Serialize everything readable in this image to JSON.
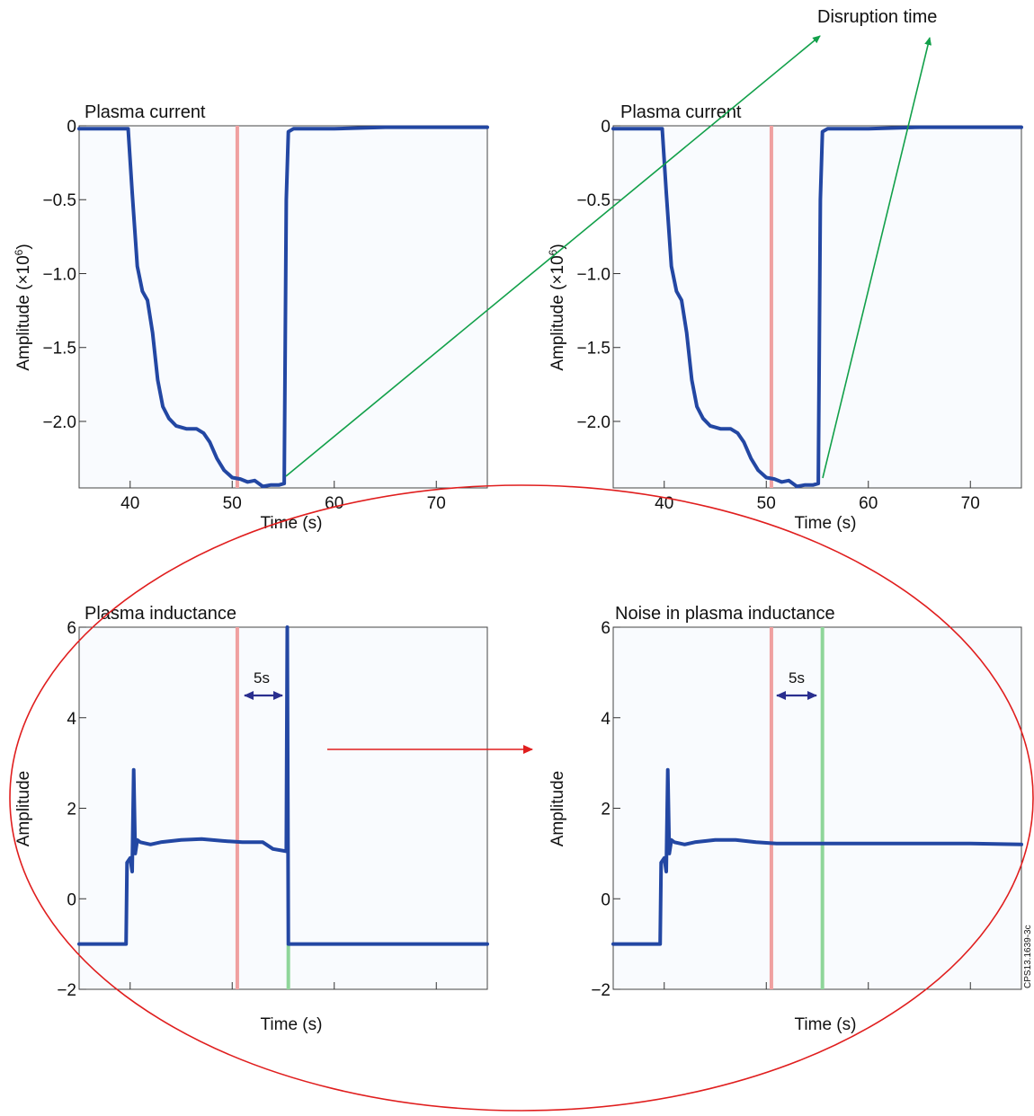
{
  "annotations": {
    "disruption_time": "Disruption time",
    "interval_5s": "5s",
    "figure_id": "CPS13.1639-3c"
  },
  "colors": {
    "trace": "#2347a3",
    "red_marker": "#f0a0a0",
    "green_marker": "#8fd69a",
    "green_arrow": "#12a04a",
    "red_ellipse": "#e01e1e",
    "interval_arrow": "#2a2f8f"
  },
  "chart_data": [
    {
      "type": "line",
      "title": "Plasma current",
      "xlabel": "Time (s)",
      "ylabel": "Amplitude (×10⁶)",
      "xlim": [
        35,
        75
      ],
      "ylim": [
        -2.45,
        0
      ],
      "xticks": [
        40,
        50,
        60,
        70
      ],
      "yticks": [
        0,
        -0.5,
        -1.0,
        -1.5,
        -2.0
      ],
      "ytick_labels": [
        "0",
        "−0.5",
        "−1.0",
        "−1.5",
        "−2.0"
      ],
      "show_xtick_labels": true,
      "markers": [
        {
          "x": 50.5,
          "color": "red"
        }
      ],
      "series": [
        {
          "x": [
            35,
            39.8,
            40.2,
            40.7,
            41.2,
            41.7,
            42.2,
            42.7,
            43.2,
            43.8,
            44.5,
            45.5,
            46.5,
            47.2,
            47.8,
            48.5,
            49.2,
            50.0,
            50.8,
            51.5,
            52.2,
            53.0,
            53.8,
            54.6,
            55.1,
            55.3,
            55.5,
            56.0,
            60,
            65,
            75
          ],
          "y": [
            -0.02,
            -0.02,
            -0.45,
            -0.95,
            -1.12,
            -1.18,
            -1.4,
            -1.72,
            -1.9,
            -1.98,
            -2.03,
            -2.05,
            -2.05,
            -2.08,
            -2.14,
            -2.25,
            -2.33,
            -2.38,
            -2.39,
            -2.41,
            -2.4,
            -2.44,
            -2.43,
            -2.43,
            -2.42,
            -0.5,
            -0.04,
            -0.02,
            -0.02,
            -0.01,
            -0.01
          ]
        }
      ]
    },
    {
      "type": "line",
      "title": "Plasma current",
      "xlabel": "Time (s)",
      "ylabel": "Amplitude (×10⁶)",
      "xlim": [
        35,
        75
      ],
      "ylim": [
        -2.45,
        0
      ],
      "xticks": [
        40,
        50,
        60,
        70
      ],
      "yticks": [
        0,
        -0.5,
        -1.0,
        -1.5,
        -2.0
      ],
      "ytick_labels": [
        "0",
        "−0.5",
        "−1.0",
        "−1.5",
        "−2.0"
      ],
      "show_xtick_labels": true,
      "markers": [
        {
          "x": 50.5,
          "color": "red"
        }
      ],
      "series": [
        {
          "x": [
            35,
            39.8,
            40.2,
            40.7,
            41.2,
            41.7,
            42.2,
            42.7,
            43.2,
            43.8,
            44.5,
            45.5,
            46.5,
            47.2,
            47.8,
            48.5,
            49.2,
            50.0,
            50.8,
            51.5,
            52.2,
            53.0,
            53.8,
            54.6,
            55.1,
            55.3,
            55.5,
            56.0,
            60,
            65,
            75
          ],
          "y": [
            -0.02,
            -0.02,
            -0.45,
            -0.95,
            -1.12,
            -1.18,
            -1.4,
            -1.72,
            -1.9,
            -1.98,
            -2.03,
            -2.05,
            -2.05,
            -2.08,
            -2.14,
            -2.25,
            -2.33,
            -2.38,
            -2.39,
            -2.41,
            -2.4,
            -2.44,
            -2.43,
            -2.43,
            -2.42,
            -0.5,
            -0.04,
            -0.02,
            -0.02,
            -0.01,
            -0.01
          ]
        }
      ]
    },
    {
      "type": "line",
      "title": "Plasma inductance",
      "xlabel": "Time (s)",
      "ylabel": "Amplitude",
      "xlim": [
        35,
        75
      ],
      "ylim": [
        -2,
        6
      ],
      "xticks": [
        40,
        50,
        60,
        70
      ],
      "yticks": [
        6,
        4,
        2,
        0,
        -2
      ],
      "ytick_labels": [
        "6",
        "4",
        "2",
        "0",
        "−2"
      ],
      "show_xtick_labels": false,
      "markers": [
        {
          "x": 50.5,
          "color": "red"
        },
        {
          "x": 55.5,
          "color": "green",
          "from_y": -2,
          "to_y": -1
        }
      ],
      "series": [
        {
          "x": [
            35,
            39.6,
            39.7,
            40.0,
            40.2,
            40.35,
            40.5,
            40.7,
            41.0,
            42.0,
            43.0,
            45.0,
            47.0,
            49.0,
            51.0,
            53.0,
            54.0,
            55.3,
            55.4,
            55.5,
            55.6,
            60,
            75
          ],
          "y": [
            -1,
            -1,
            0.8,
            0.9,
            0.6,
            2.85,
            1.0,
            1.3,
            1.25,
            1.2,
            1.25,
            1.3,
            1.32,
            1.28,
            1.25,
            1.25,
            1.1,
            1.05,
            6.2,
            -1,
            -1,
            -1,
            -1
          ]
        }
      ]
    },
    {
      "type": "line",
      "title": "Noise in plasma inductance",
      "xlabel": "Time (s)",
      "ylabel": "Amplitude",
      "xlim": [
        35,
        75
      ],
      "ylim": [
        -2,
        6
      ],
      "xticks": [
        40,
        50,
        60,
        70
      ],
      "yticks": [
        6,
        4,
        2,
        0,
        -2
      ],
      "ytick_labels": [
        "6",
        "4",
        "2",
        "0",
        "−2"
      ],
      "show_xtick_labels": false,
      "markers": [
        {
          "x": 50.5,
          "color": "red"
        },
        {
          "x": 55.5,
          "color": "green"
        }
      ],
      "series": [
        {
          "x": [
            35,
            39.6,
            39.7,
            40.0,
            40.2,
            40.35,
            40.5,
            40.7,
            41.0,
            42.0,
            43.0,
            45.0,
            47.0,
            49.0,
            51.0,
            55.0,
            60.0,
            65.0,
            70.0,
            75.0
          ],
          "y": [
            -1,
            -1,
            0.8,
            0.9,
            0.6,
            2.85,
            1.0,
            1.3,
            1.25,
            1.2,
            1.25,
            1.3,
            1.3,
            1.25,
            1.22,
            1.22,
            1.22,
            1.22,
            1.22,
            1.2
          ]
        }
      ]
    }
  ]
}
